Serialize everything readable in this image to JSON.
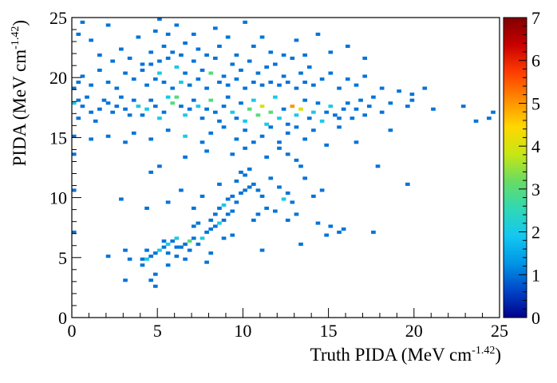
{
  "chart_data": {
    "type": "heatmap",
    "title": "",
    "xlabel": "Truth PIDA (MeV cm",
    "xlabel_exponent": "-1.42",
    "xlabel_suffix": ")",
    "ylabel": "PIDA (MeV cm",
    "ylabel_exponent": "-1.42",
    "ylabel_suffix": ")",
    "xlim": [
      0,
      25
    ],
    "ylim": [
      0,
      25
    ],
    "zlim": [
      0,
      7
    ],
    "bins": {
      "x": 100,
      "y": 100,
      "width": 0.25
    },
    "x_ticks": [
      "0",
      "5",
      "10",
      "15",
      "20",
      "25"
    ],
    "y_ticks": [
      "0",
      "5",
      "10",
      "15",
      "20",
      "25"
    ],
    "z_ticks": [
      "0",
      "1",
      "2",
      "3",
      "4",
      "5",
      "6",
      "7"
    ],
    "colormap": [
      "#00008b",
      "#0046c8",
      "#0096e6",
      "#14c8f0",
      "#30d8b4",
      "#68dc64",
      "#c8e614",
      "#ffd700",
      "#ff8c00",
      "#ff3c00",
      "#c80000",
      "#800000"
    ],
    "grid": false,
    "legend": "color bar on right",
    "cells": [
      [
        4.12,
        4.88,
        1
      ],
      [
        4.38,
        4.88,
        2
      ],
      [
        4.62,
        5.12,
        1
      ],
      [
        4.88,
        5.38,
        1
      ],
      [
        5.12,
        5.62,
        2
      ],
      [
        5.38,
        5.88,
        1
      ],
      [
        5.62,
        6.12,
        2
      ],
      [
        5.88,
        6.38,
        1
      ],
      [
        6.12,
        6.62,
        2
      ],
      [
        6.38,
        5.88,
        1
      ],
      [
        6.62,
        6.12,
        1
      ],
      [
        6.88,
        6.38,
        3
      ],
      [
        7.12,
        6.62,
        1
      ],
      [
        5.38,
        6.38,
        1
      ],
      [
        6.12,
        5.88,
        1
      ],
      [
        5.62,
        5.38,
        1
      ],
      [
        6.88,
        5.62,
        1
      ],
      [
        7.38,
        6.12,
        1
      ],
      [
        7.62,
        6.62,
        2
      ],
      [
        7.88,
        7.12,
        1
      ],
      [
        8.12,
        7.38,
        1
      ],
      [
        8.38,
        7.62,
        1
      ],
      [
        8.62,
        7.88,
        2
      ],
      [
        8.88,
        8.12,
        1
      ],
      [
        9.12,
        8.62,
        1
      ],
      [
        9.38,
        8.88,
        1
      ],
      [
        7.12,
        7.62,
        1
      ],
      [
        7.38,
        7.88,
        1
      ],
      [
        8.12,
        8.12,
        1
      ],
      [
        8.38,
        8.62,
        1
      ],
      [
        8.62,
        9.12,
        1
      ],
      [
        8.88,
        9.38,
        2
      ],
      [
        9.12,
        9.88,
        1
      ],
      [
        9.38,
        10.12,
        1
      ],
      [
        9.62,
        9.62,
        1
      ],
      [
        9.88,
        10.38,
        1
      ],
      [
        10.12,
        10.62,
        1
      ],
      [
        10.38,
        10.88,
        1
      ],
      [
        10.62,
        11.12,
        1
      ],
      [
        10.88,
        10.62,
        1
      ],
      [
        11.12,
        10.12,
        1
      ],
      [
        9.62,
        11.38,
        1
      ],
      [
        10.12,
        11.88,
        1
      ],
      [
        10.38,
        12.38,
        1
      ],
      [
        9.88,
        12.12,
        1
      ],
      [
        11.62,
        11.62,
        1
      ],
      [
        12.12,
        10.88,
        1
      ],
      [
        13.62,
        11.62,
        1
      ],
      [
        13.38,
        12.62,
        1
      ],
      [
        12.88,
        9.62,
        1
      ],
      [
        11.38,
        9.12,
        1
      ],
      [
        10.88,
        8.62,
        1
      ],
      [
        10.62,
        8.12,
        1
      ],
      [
        11.88,
        8.88,
        1
      ],
      [
        12.62,
        8.12,
        1
      ],
      [
        13.12,
        8.62,
        1
      ],
      [
        14.38,
        7.88,
        1
      ],
      [
        15.12,
        7.62,
        1
      ],
      [
        15.88,
        7.38,
        1
      ],
      [
        14.88,
        6.88,
        1
      ],
      [
        13.38,
        6.12,
        1
      ],
      [
        11.12,
        5.62,
        1
      ],
      [
        8.88,
        6.62,
        1
      ],
      [
        9.38,
        6.88,
        1
      ],
      [
        8.12,
        5.38,
        1
      ],
      [
        7.88,
        4.62,
        1
      ],
      [
        6.62,
        4.88,
        1
      ],
      [
        6.12,
        5.12,
        1
      ],
      [
        5.62,
        4.38,
        1
      ],
      [
        4.88,
        3.62,
        1
      ],
      [
        4.62,
        3.12,
        1
      ],
      [
        4.88,
        2.62,
        1
      ],
      [
        3.12,
        3.12,
        1
      ],
      [
        3.38,
        4.88,
        1
      ],
      [
        2.12,
        5.12,
        1
      ],
      [
        3.12,
        5.62,
        1
      ],
      [
        4.12,
        4.38,
        1
      ],
      [
        4.38,
        5.62,
        1
      ],
      [
        0.12,
        7.12,
        1
      ],
      [
        0.12,
        10.62,
        1
      ],
      [
        2.88,
        9.88,
        1
      ],
      [
        4.38,
        9.12,
        1
      ],
      [
        5.62,
        9.62,
        1
      ],
      [
        5.12,
        12.62,
        1
      ],
      [
        4.62,
        12.12,
        1
      ],
      [
        6.38,
        10.62,
        1
      ],
      [
        7.12,
        9.12,
        1
      ],
      [
        7.62,
        10.12,
        1
      ],
      [
        8.62,
        11.12,
        1
      ],
      [
        12.62,
        10.38,
        1
      ],
      [
        12.38,
        9.88,
        2
      ],
      [
        14.12,
        10.12,
        1
      ],
      [
        14.62,
        10.62,
        1
      ],
      [
        15.62,
        7.12,
        1
      ],
      [
        17.62,
        7.12,
        1
      ],
      [
        19.62,
        11.12,
        1
      ],
      [
        17.88,
        12.62,
        1
      ],
      [
        0.12,
        13.62,
        1
      ],
      [
        0.12,
        15.12,
        1
      ],
      [
        0.38,
        16.62,
        1
      ],
      [
        0.12,
        17.88,
        2
      ],
      [
        0.38,
        18.12,
        1
      ],
      [
        0.62,
        17.62,
        1
      ],
      [
        0.88,
        18.38,
        1
      ],
      [
        1.12,
        17.12,
        1
      ],
      [
        1.38,
        16.38,
        1
      ],
      [
        1.62,
        17.38,
        1
      ],
      [
        1.88,
        18.12,
        1
      ],
      [
        2.12,
        17.88,
        1
      ],
      [
        2.38,
        17.12,
        1
      ],
      [
        2.62,
        17.62,
        1
      ],
      [
        2.88,
        18.38,
        1
      ],
      [
        3.12,
        17.38,
        1
      ],
      [
        3.38,
        16.88,
        1
      ],
      [
        3.62,
        18.12,
        1
      ],
      [
        3.88,
        17.62,
        2
      ],
      [
        4.12,
        16.88,
        1
      ],
      [
        4.38,
        17.38,
        2
      ],
      [
        4.62,
        18.12,
        1
      ],
      [
        4.88,
        17.62,
        1
      ],
      [
        5.12,
        16.62,
        2
      ],
      [
        5.38,
        17.12,
        1
      ],
      [
        5.62,
        18.38,
        2
      ],
      [
        5.88,
        17.88,
        3
      ],
      [
        6.12,
        18.38,
        3
      ],
      [
        6.38,
        17.62,
        1
      ],
      [
        6.62,
        16.88,
        2
      ],
      [
        6.88,
        17.38,
        1
      ],
      [
        7.12,
        18.12,
        1
      ],
      [
        7.38,
        17.62,
        2
      ],
      [
        7.62,
        16.62,
        1
      ],
      [
        7.88,
        17.38,
        1
      ],
      [
        8.12,
        18.12,
        3
      ],
      [
        8.38,
        17.12,
        1
      ],
      [
        8.62,
        16.38,
        1
      ],
      [
        8.88,
        17.62,
        1
      ],
      [
        9.12,
        18.38,
        1
      ],
      [
        9.38,
        17.12,
        2
      ],
      [
        9.62,
        16.62,
        1
      ],
      [
        9.88,
        17.88,
        1
      ],
      [
        10.12,
        16.38,
        2
      ],
      [
        10.38,
        17.38,
        3
      ],
      [
        10.62,
        18.12,
        2
      ],
      [
        10.88,
        16.88,
        3
      ],
      [
        11.12,
        17.62,
        4
      ],
      [
        11.38,
        16.12,
        2
      ],
      [
        11.62,
        17.12,
        3
      ],
      [
        11.88,
        18.38,
        2
      ],
      [
        12.12,
        16.62,
        2
      ],
      [
        12.38,
        17.38,
        1
      ],
      [
        12.62,
        16.12,
        1
      ],
      [
        12.88,
        17.62,
        5
      ],
      [
        13.12,
        16.88,
        2
      ],
      [
        13.38,
        17.38,
        4
      ],
      [
        13.62,
        18.12,
        1
      ],
      [
        13.88,
        16.62,
        1
      ],
      [
        14.12,
        17.12,
        2
      ],
      [
        14.38,
        17.88,
        1
      ],
      [
        14.62,
        16.38,
        2
      ],
      [
        14.88,
        17.12,
        1
      ],
      [
        15.12,
        17.62,
        2
      ],
      [
        15.38,
        16.88,
        1
      ],
      [
        15.62,
        16.62,
        1
      ],
      [
        15.88,
        17.38,
        1
      ],
      [
        16.12,
        17.88,
        1
      ],
      [
        16.38,
        16.62,
        1
      ],
      [
        16.62,
        17.38,
        1
      ],
      [
        16.88,
        18.12,
        1
      ],
      [
        17.12,
        16.88,
        1
      ],
      [
        17.38,
        17.62,
        1
      ],
      [
        17.62,
        18.38,
        1
      ],
      [
        18.12,
        17.12,
        1
      ],
      [
        18.62,
        17.88,
        1
      ],
      [
        19.62,
        17.62,
        1
      ],
      [
        19.88,
        18.62,
        1
      ],
      [
        20.62,
        19.12,
        1
      ],
      [
        21.12,
        17.38,
        1
      ],
      [
        22.88,
        17.62,
        1
      ],
      [
        23.62,
        16.38,
        1
      ],
      [
        24.38,
        16.62,
        1
      ],
      [
        24.62,
        17.12,
        1
      ],
      [
        1.12,
        14.88,
        1
      ],
      [
        2.12,
        15.12,
        1
      ],
      [
        3.12,
        14.62,
        1
      ],
      [
        3.62,
        15.38,
        1
      ],
      [
        4.62,
        14.88,
        1
      ],
      [
        5.62,
        15.62,
        1
      ],
      [
        6.62,
        15.12,
        2
      ],
      [
        7.62,
        14.62,
        1
      ],
      [
        8.12,
        15.38,
        1
      ],
      [
        8.88,
        15.88,
        1
      ],
      [
        9.62,
        14.88,
        1
      ],
      [
        10.12,
        15.62,
        1
      ],
      [
        10.62,
        14.62,
        1
      ],
      [
        11.12,
        15.12,
        1
      ],
      [
        11.62,
        15.88,
        1
      ],
      [
        12.12,
        14.62,
        1
      ],
      [
        12.62,
        15.38,
        1
      ],
      [
        13.12,
        15.88,
        1
      ],
      [
        13.62,
        14.88,
        1
      ],
      [
        14.12,
        15.62,
        1
      ],
      [
        14.88,
        14.38,
        1
      ],
      [
        15.62,
        15.88,
        1
      ],
      [
        16.62,
        14.62,
        1
      ],
      [
        18.62,
        15.62,
        1
      ],
      [
        12.12,
        14.12,
        1
      ],
      [
        12.62,
        13.62,
        1
      ],
      [
        13.12,
        13.12,
        1
      ],
      [
        11.38,
        13.38,
        1
      ],
      [
        10.12,
        14.12,
        1
      ],
      [
        9.38,
        13.62,
        1
      ],
      [
        7.88,
        13.88,
        1
      ],
      [
        6.62,
        13.38,
        1
      ],
      [
        0.12,
        19.12,
        1
      ],
      [
        0.38,
        19.62,
        1
      ],
      [
        0.62,
        20.12,
        1
      ],
      [
        1.12,
        19.38,
        1
      ],
      [
        1.62,
        20.62,
        1
      ],
      [
        2.12,
        19.62,
        1
      ],
      [
        2.38,
        21.38,
        1
      ],
      [
        2.62,
        19.12,
        1
      ],
      [
        3.12,
        20.38,
        1
      ],
      [
        3.62,
        19.88,
        1
      ],
      [
        4.12,
        20.62,
        1
      ],
      [
        4.38,
        19.38,
        1
      ],
      [
        4.62,
        21.12,
        1
      ],
      [
        4.88,
        19.88,
        1
      ],
      [
        5.12,
        20.38,
        2
      ],
      [
        5.38,
        19.62,
        1
      ],
      [
        5.62,
        21.62,
        1
      ],
      [
        5.88,
        19.12,
        1
      ],
      [
        6.12,
        20.88,
        2
      ],
      [
        6.38,
        19.62,
        2
      ],
      [
        6.62,
        20.38,
        1
      ],
      [
        6.88,
        19.38,
        1
      ],
      [
        7.12,
        21.38,
        1
      ],
      [
        7.38,
        19.88,
        1
      ],
      [
        7.62,
        20.62,
        1
      ],
      [
        7.88,
        19.12,
        1
      ],
      [
        8.12,
        20.38,
        3
      ],
      [
        8.38,
        21.62,
        1
      ],
      [
        8.62,
        19.62,
        1
      ],
      [
        8.88,
        20.12,
        1
      ],
      [
        9.12,
        19.38,
        1
      ],
      [
        9.38,
        21.12,
        1
      ],
      [
        9.62,
        19.88,
        1
      ],
      [
        9.88,
        20.62,
        1
      ],
      [
        10.12,
        19.12,
        1
      ],
      [
        10.38,
        21.38,
        1
      ],
      [
        10.62,
        19.62,
        1
      ],
      [
        10.88,
        20.38,
        1
      ],
      [
        11.12,
        19.38,
        1
      ],
      [
        11.38,
        20.88,
        1
      ],
      [
        11.62,
        19.62,
        1
      ],
      [
        11.88,
        21.12,
        1
      ],
      [
        12.12,
        19.38,
        1
      ],
      [
        12.38,
        20.12,
        1
      ],
      [
        12.62,
        19.62,
        1
      ],
      [
        12.88,
        21.62,
        1
      ],
      [
        13.12,
        19.12,
        1
      ],
      [
        13.38,
        20.38,
        1
      ],
      [
        13.62,
        19.62,
        1
      ],
      [
        13.88,
        20.88,
        1
      ],
      [
        14.12,
        19.38,
        1
      ],
      [
        14.62,
        19.88,
        1
      ],
      [
        15.12,
        20.38,
        1
      ],
      [
        15.62,
        19.12,
        1
      ],
      [
        16.12,
        19.88,
        1
      ],
      [
        16.62,
        19.38,
        1
      ],
      [
        17.12,
        20.12,
        1
      ],
      [
        18.12,
        19.12,
        1
      ],
      [
        19.12,
        18.88,
        1
      ],
      [
        19.88,
        18.12,
        1
      ],
      [
        0.38,
        23.62,
        1
      ],
      [
        0.62,
        24.62,
        1
      ],
      [
        1.12,
        23.12,
        1
      ],
      [
        1.62,
        21.88,
        1
      ],
      [
        2.12,
        24.38,
        1
      ],
      [
        2.88,
        22.38,
        1
      ],
      [
        3.38,
        21.62,
        1
      ],
      [
        3.88,
        23.38,
        1
      ],
      [
        4.62,
        22.12,
        1
      ],
      [
        4.88,
        23.88,
        1
      ],
      [
        5.12,
        24.88,
        1
      ],
      [
        5.38,
        22.62,
        1
      ],
      [
        5.62,
        23.62,
        1
      ],
      [
        5.88,
        22.12,
        1
      ],
      [
        6.12,
        24.38,
        1
      ],
      [
        6.38,
        21.88,
        1
      ],
      [
        6.62,
        22.88,
        1
      ],
      [
        7.12,
        23.62,
        1
      ],
      [
        7.38,
        22.38,
        1
      ],
      [
        7.88,
        21.88,
        1
      ],
      [
        8.38,
        24.12,
        1
      ],
      [
        8.62,
        22.62,
        1
      ],
      [
        9.12,
        23.38,
        1
      ],
      [
        9.62,
        21.88,
        1
      ],
      [
        10.12,
        24.62,
        1
      ],
      [
        10.62,
        22.62,
        1
      ],
      [
        11.12,
        23.38,
        1
      ],
      [
        11.62,
        22.12,
        1
      ],
      [
        12.38,
        21.88,
        1
      ],
      [
        13.12,
        23.12,
        1
      ],
      [
        13.62,
        21.88,
        1
      ],
      [
        14.38,
        23.62,
        1
      ],
      [
        15.12,
        22.12,
        1
      ],
      [
        16.12,
        22.62,
        1
      ],
      [
        17.12,
        21.62,
        1
      ],
      [
        4.12,
        21.12,
        1
      ],
      [
        5.12,
        21.38,
        1
      ]
    ]
  }
}
